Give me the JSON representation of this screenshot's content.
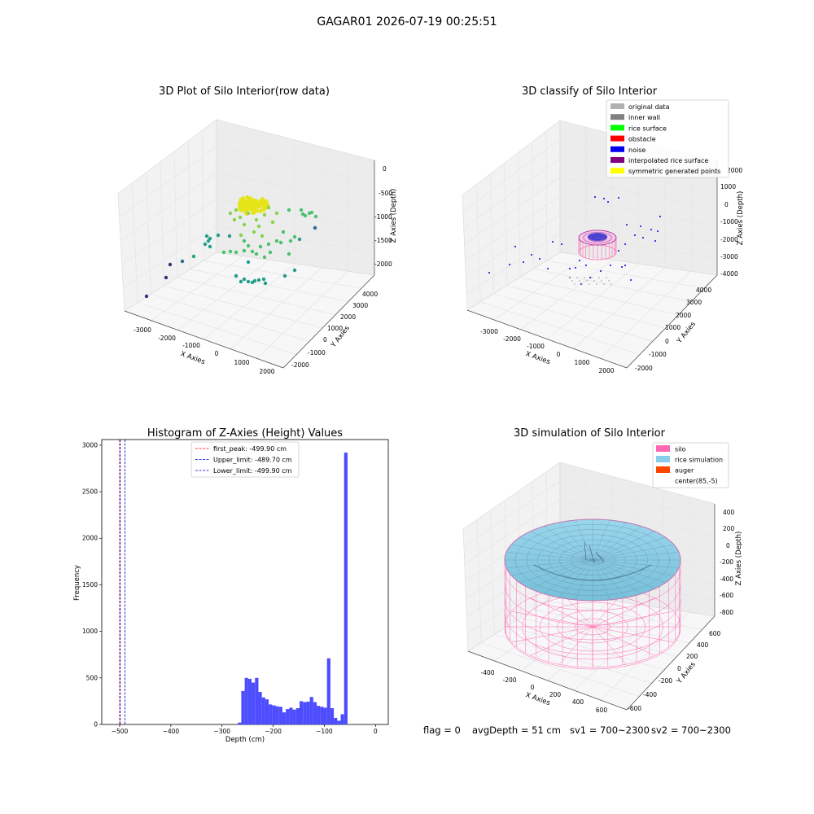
{
  "figure": {
    "suptitle": "GAGAR01 2026-07-19 00:25:51"
  },
  "footer": {
    "flag": "flag = 0",
    "avg_depth": "avgDepth = 51 cm",
    "sv1": "sv1 = 700~2300",
    "sv2": "sv2 = 700~2300"
  },
  "chart_data": [
    {
      "type": "scatter",
      "subtype": "3d",
      "title": "3D Plot of Silo Interior(row data)",
      "xlabel": "X Axies",
      "ylabel": "Y Axies",
      "zlabel": "Z Axies (Depth)",
      "x_ticks": [
        "-3000",
        "-2000",
        "-1000",
        "0",
        "1000",
        "2000"
      ],
      "y_ticks": [
        "-2000",
        "-1000",
        "0",
        "1000",
        "2000",
        "3000",
        "4000"
      ],
      "z_ticks": [
        "0",
        "-500",
        "-1000",
        "-1500",
        "-2000"
      ],
      "colormap": "viridis",
      "colors": {
        "yellow": "#e5e419",
        "lime": "#86d549",
        "green": "#4ac16d",
        "teal": "#1f9e89",
        "blue": "#31688e",
        "purple": "#482878"
      }
    },
    {
      "type": "scatter",
      "subtype": "3d",
      "title": "3D classify of Silo Interior",
      "xlabel": "X Axies",
      "ylabel": "Y Axies",
      "zlabel": "Z Axies (Depth)",
      "x_ticks": [
        "-3000",
        "-2000",
        "-1000",
        "0",
        "1000",
        "2000"
      ],
      "y_ticks": [
        "-2000",
        "-1000",
        "0",
        "1000",
        "2000",
        "3000",
        "4000"
      ],
      "z_ticks": [
        "2000",
        "1000",
        "0",
        "-1000",
        "-2000",
        "-3000",
        "-4000"
      ],
      "legend_position": "top-right",
      "legend": [
        {
          "label": "original data",
          "color": "#b0b0b0"
        },
        {
          "label": "inner wall",
          "color": "#808080"
        },
        {
          "label": "rice surface",
          "color": "#00ff00"
        },
        {
          "label": "obstacle",
          "color": "#ff0000"
        },
        {
          "label": "noise",
          "color": "#0000ee"
        },
        {
          "label": "interpolated rice surface",
          "color": "#800080"
        },
        {
          "label": "symmetric generated points",
          "color": "#ffff00"
        }
      ]
    },
    {
      "type": "bar",
      "subtype": "histogram",
      "title": "Histogram of Z-Axies (Height) Values",
      "xlabel": "Depth (cm)",
      "ylabel": "Frequency",
      "xlim": [
        -535,
        25
      ],
      "ylim": [
        0,
        3060
      ],
      "x_ticks": [
        -500,
        -400,
        -300,
        -200,
        -100,
        0
      ],
      "y_ticks": [
        0,
        500,
        1000,
        1500,
        2000,
        2500,
        3000
      ],
      "bar_color": "#4d4dff",
      "bin_width": 6.7,
      "bins_start": [
        -269,
        -262.3,
        -255.6,
        -248.9,
        -242.2,
        -235.5,
        -228.8,
        -222.1,
        -215.4,
        -208.7,
        -202,
        -195.3,
        -188.6,
        -181.9,
        -175.2,
        -168.5,
        -161.8,
        -155.1,
        -148.4,
        -141.7,
        -135,
        -128.3,
        -121.6,
        -114.9,
        -108.2,
        -101.5,
        -94.8,
        -88.1,
        -81.4,
        -74.7,
        -68,
        -61.3,
        -54.6,
        -47.9,
        -41.2,
        -34.5,
        -27.8,
        -21.1,
        -14.4,
        -7.7
      ],
      "values": [
        20,
        360,
        500,
        490,
        450,
        500,
        350,
        290,
        270,
        215,
        205,
        195,
        190,
        130,
        165,
        180,
        160,
        175,
        250,
        240,
        245,
        295,
        240,
        200,
        190,
        180,
        710,
        175,
        70,
        40,
        110,
        2920
      ],
      "values_note_bins": "the first bins listed map one-to-one onto values",
      "vlines": [
        {
          "label": "first_peak: -499.90 cm",
          "x": -499.9,
          "color": "#ff0000"
        },
        {
          "label": "Upper_limit: -489.70 cm",
          "x": -489.7,
          "color": "#0000cc"
        },
        {
          "label": "Lower_limit: -499.90 cm",
          "x": -499.9,
          "color": "#0000cc"
        }
      ],
      "legend_position": "top-center"
    },
    {
      "type": "surface",
      "subtype": "3d",
      "title": "3D simulation of Silo Interior",
      "xlabel": "X Axies",
      "ylabel": "Y Axies",
      "zlabel": "Z Axies (Depth)",
      "x_ticks": [
        "-400",
        "-200",
        "0",
        "200",
        "400",
        "600"
      ],
      "y_ticks": [
        "-600",
        "-400",
        "-200",
        "0",
        "200",
        "400",
        "600"
      ],
      "z_ticks": [
        "400",
        "200",
        "0",
        "-200",
        "-400",
        "-600",
        "-800"
      ],
      "legend_position": "top-right",
      "legend": [
        {
          "label": "silo",
          "color": "#ff69b4"
        },
        {
          "label": "rice simulation",
          "color": "#87ceeb"
        },
        {
          "label": "auger",
          "color": "#ff4500"
        },
        {
          "label": "center(85,-5)",
          "color": "#ffffff"
        }
      ]
    }
  ]
}
